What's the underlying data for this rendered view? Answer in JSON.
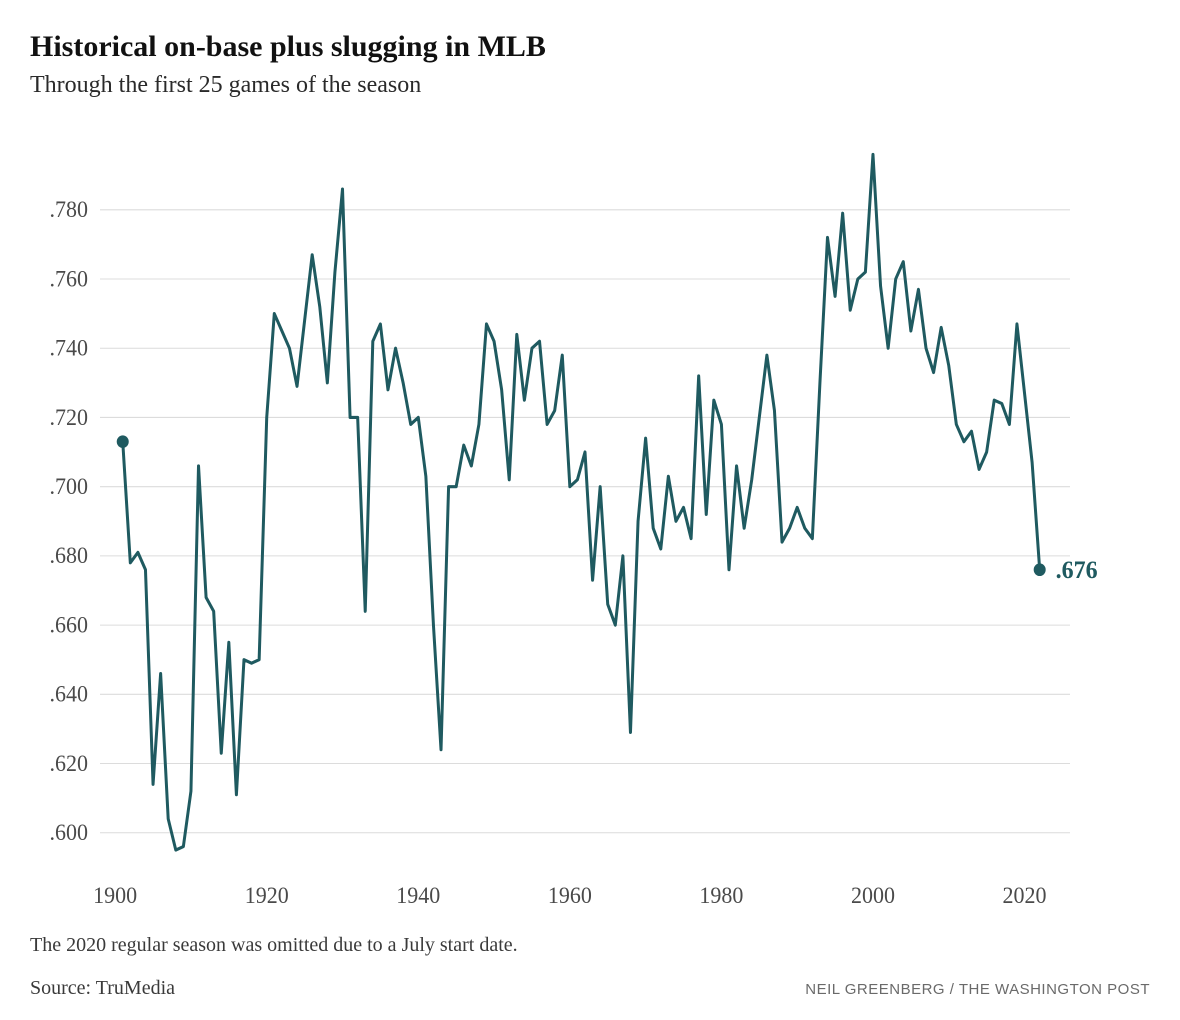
{
  "title": "Historical on-base plus slugging in MLB",
  "subtitle": "Through the first 25 games of the season",
  "footnote": "The 2020 regular season was omitted due to a July start date.",
  "source": "Source: TruMedia",
  "credit": "NEIL GREENBERG / THE WASHINGTON POST",
  "title_fontsize": 30,
  "title_color": "#111111",
  "subtitle_fontsize": 24,
  "subtitle_color": "#2a2a2a",
  "footnote_fontsize": 20,
  "footnote_color": "#3a3a3a",
  "source_fontsize": 20,
  "source_color": "#3a3a3a",
  "credit_fontsize": 15,
  "credit_color": "#6a6a6a",
  "chart": {
    "type": "line",
    "background_color": "#ffffff",
    "grid_color": "#dcdcdc",
    "axis_label_color": "#4a4a4a",
    "axis_label_fontsize": 22,
    "line_color": "#1f5a60",
    "line_width": 3,
    "marker_radius": 6,
    "end_label_text": ".676",
    "end_label_color": "#1f5a60",
    "end_label_fontsize": 24,
    "x": {
      "min": 1898,
      "max": 2026,
      "ticks": [
        1900,
        1920,
        1940,
        1960,
        1980,
        2000,
        2020
      ]
    },
    "y": {
      "min": 0.59,
      "max": 0.8,
      "ticks": [
        0.6,
        0.62,
        0.64,
        0.66,
        0.68,
        0.7,
        0.72,
        0.74,
        0.76,
        0.78
      ],
      "tick_labels": [
        ".600",
        ".620",
        ".640",
        ".660",
        ".680",
        ".700",
        ".720",
        ".740",
        ".760",
        ".780"
      ]
    },
    "start_marker": {
      "year": 1901,
      "value": 0.713
    },
    "end_marker": {
      "year": 2022,
      "value": 0.676
    },
    "series": [
      {
        "year": 1901,
        "value": 0.713
      },
      {
        "year": 1902,
        "value": 0.678
      },
      {
        "year": 1903,
        "value": 0.681
      },
      {
        "year": 1904,
        "value": 0.676
      },
      {
        "year": 1905,
        "value": 0.614
      },
      {
        "year": 1906,
        "value": 0.646
      },
      {
        "year": 1907,
        "value": 0.604
      },
      {
        "year": 1908,
        "value": 0.595
      },
      {
        "year": 1909,
        "value": 0.596
      },
      {
        "year": 1910,
        "value": 0.612
      },
      {
        "year": 1911,
        "value": 0.706
      },
      {
        "year": 1912,
        "value": 0.668
      },
      {
        "year": 1913,
        "value": 0.664
      },
      {
        "year": 1914,
        "value": 0.623
      },
      {
        "year": 1915,
        "value": 0.655
      },
      {
        "year": 1916,
        "value": 0.611
      },
      {
        "year": 1917,
        "value": 0.65
      },
      {
        "year": 1918,
        "value": 0.649
      },
      {
        "year": 1919,
        "value": 0.65
      },
      {
        "year": 1920,
        "value": 0.72
      },
      {
        "year": 1921,
        "value": 0.75
      },
      {
        "year": 1922,
        "value": 0.745
      },
      {
        "year": 1923,
        "value": 0.74
      },
      {
        "year": 1924,
        "value": 0.729
      },
      {
        "year": 1925,
        "value": 0.748
      },
      {
        "year": 1926,
        "value": 0.767
      },
      {
        "year": 1927,
        "value": 0.752
      },
      {
        "year": 1928,
        "value": 0.73
      },
      {
        "year": 1929,
        "value": 0.762
      },
      {
        "year": 1930,
        "value": 0.786
      },
      {
        "year": 1931,
        "value": 0.72
      },
      {
        "year": 1932,
        "value": 0.72
      },
      {
        "year": 1933,
        "value": 0.664
      },
      {
        "year": 1934,
        "value": 0.742
      },
      {
        "year": 1935,
        "value": 0.747
      },
      {
        "year": 1936,
        "value": 0.728
      },
      {
        "year": 1937,
        "value": 0.74
      },
      {
        "year": 1938,
        "value": 0.73
      },
      {
        "year": 1939,
        "value": 0.718
      },
      {
        "year": 1940,
        "value": 0.72
      },
      {
        "year": 1941,
        "value": 0.703
      },
      {
        "year": 1942,
        "value": 0.66
      },
      {
        "year": 1943,
        "value": 0.624
      },
      {
        "year": 1944,
        "value": 0.7
      },
      {
        "year": 1945,
        "value": 0.7
      },
      {
        "year": 1946,
        "value": 0.712
      },
      {
        "year": 1947,
        "value": 0.706
      },
      {
        "year": 1948,
        "value": 0.718
      },
      {
        "year": 1949,
        "value": 0.747
      },
      {
        "year": 1950,
        "value": 0.742
      },
      {
        "year": 1951,
        "value": 0.728
      },
      {
        "year": 1952,
        "value": 0.702
      },
      {
        "year": 1953,
        "value": 0.744
      },
      {
        "year": 1954,
        "value": 0.725
      },
      {
        "year": 1955,
        "value": 0.74
      },
      {
        "year": 1956,
        "value": 0.742
      },
      {
        "year": 1957,
        "value": 0.718
      },
      {
        "year": 1958,
        "value": 0.722
      },
      {
        "year": 1959,
        "value": 0.738
      },
      {
        "year": 1960,
        "value": 0.7
      },
      {
        "year": 1961,
        "value": 0.702
      },
      {
        "year": 1962,
        "value": 0.71
      },
      {
        "year": 1963,
        "value": 0.673
      },
      {
        "year": 1964,
        "value": 0.7
      },
      {
        "year": 1965,
        "value": 0.666
      },
      {
        "year": 1966,
        "value": 0.66
      },
      {
        "year": 1967,
        "value": 0.68
      },
      {
        "year": 1968,
        "value": 0.629
      },
      {
        "year": 1969,
        "value": 0.69
      },
      {
        "year": 1970,
        "value": 0.714
      },
      {
        "year": 1971,
        "value": 0.688
      },
      {
        "year": 1972,
        "value": 0.682
      },
      {
        "year": 1973,
        "value": 0.703
      },
      {
        "year": 1974,
        "value": 0.69
      },
      {
        "year": 1975,
        "value": 0.694
      },
      {
        "year": 1976,
        "value": 0.685
      },
      {
        "year": 1977,
        "value": 0.732
      },
      {
        "year": 1978,
        "value": 0.692
      },
      {
        "year": 1979,
        "value": 0.725
      },
      {
        "year": 1980,
        "value": 0.718
      },
      {
        "year": 1981,
        "value": 0.676
      },
      {
        "year": 1982,
        "value": 0.706
      },
      {
        "year": 1983,
        "value": 0.688
      },
      {
        "year": 1984,
        "value": 0.702
      },
      {
        "year": 1985,
        "value": 0.72
      },
      {
        "year": 1986,
        "value": 0.738
      },
      {
        "year": 1987,
        "value": 0.722
      },
      {
        "year": 1988,
        "value": 0.684
      },
      {
        "year": 1989,
        "value": 0.688
      },
      {
        "year": 1990,
        "value": 0.694
      },
      {
        "year": 1991,
        "value": 0.688
      },
      {
        "year": 1992,
        "value": 0.685
      },
      {
        "year": 1993,
        "value": 0.73
      },
      {
        "year": 1994,
        "value": 0.772
      },
      {
        "year": 1995,
        "value": 0.755
      },
      {
        "year": 1996,
        "value": 0.779
      },
      {
        "year": 1997,
        "value": 0.751
      },
      {
        "year": 1998,
        "value": 0.76
      },
      {
        "year": 1999,
        "value": 0.762
      },
      {
        "year": 2000,
        "value": 0.796
      },
      {
        "year": 2001,
        "value": 0.758
      },
      {
        "year": 2002,
        "value": 0.74
      },
      {
        "year": 2003,
        "value": 0.76
      },
      {
        "year": 2004,
        "value": 0.765
      },
      {
        "year": 2005,
        "value": 0.745
      },
      {
        "year": 2006,
        "value": 0.757
      },
      {
        "year": 2007,
        "value": 0.74
      },
      {
        "year": 2008,
        "value": 0.733
      },
      {
        "year": 2009,
        "value": 0.746
      },
      {
        "year": 2010,
        "value": 0.735
      },
      {
        "year": 2011,
        "value": 0.718
      },
      {
        "year": 2012,
        "value": 0.713
      },
      {
        "year": 2013,
        "value": 0.716
      },
      {
        "year": 2014,
        "value": 0.705
      },
      {
        "year": 2015,
        "value": 0.71
      },
      {
        "year": 2016,
        "value": 0.725
      },
      {
        "year": 2017,
        "value": 0.724
      },
      {
        "year": 2018,
        "value": 0.718
      },
      {
        "year": 2019,
        "value": 0.747
      },
      {
        "year": 2021,
        "value": 0.707
      },
      {
        "year": 2022,
        "value": 0.676
      }
    ]
  }
}
